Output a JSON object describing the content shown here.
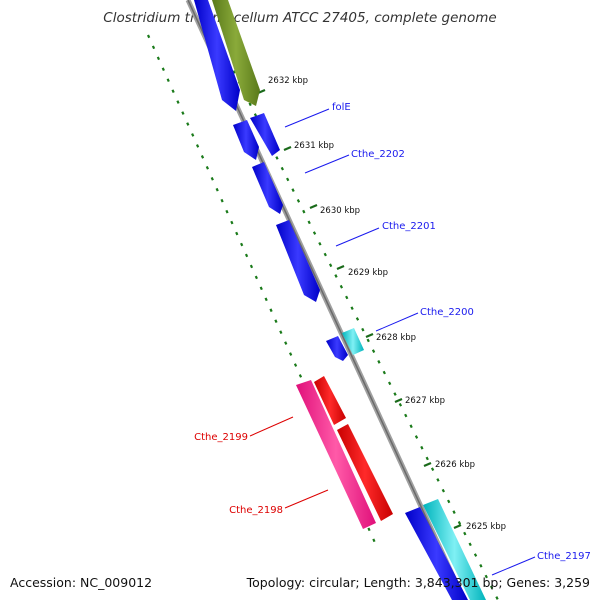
{
  "title": "Clostridium thermocellum ATCC 27405, complete genome",
  "footer": {
    "accession": "Accession: NC_009012",
    "summary": "Topology: circular; Length: 3,843,301 bp; Genes: 3,259"
  },
  "ruler": {
    "ticks": [
      {
        "label": "2632 kbp"
      },
      {
        "label": "2631 kbp"
      },
      {
        "label": "2630 kbp"
      },
      {
        "label": "2629 kbp"
      },
      {
        "label": "2628 kbp"
      },
      {
        "label": "2627 kbp"
      },
      {
        "label": "2626 kbp"
      },
      {
        "label": "2625 kbp"
      }
    ]
  },
  "genes": [
    {
      "id": "folE",
      "label": "folE",
      "color": "#1a1aee"
    },
    {
      "id": "Cthe_2202",
      "label": "Cthe_2202",
      "color": "#1a1aee"
    },
    {
      "id": "Cthe_2201",
      "label": "Cthe_2201",
      "color": "#1a1aee"
    },
    {
      "id": "Cthe_2200",
      "label": "Cthe_2200",
      "color": "#1a1aee"
    },
    {
      "id": "Cthe_2199",
      "label": "Cthe_2199",
      "color": "#dd0000"
    },
    {
      "id": "Cthe_2198",
      "label": "Cthe_2198",
      "color": "#dd0000"
    },
    {
      "id": "Cthe_2197",
      "label": "Cthe_2197",
      "color": "#1a1aee"
    }
  ],
  "colors": {
    "cds_blue": "#1010ee",
    "cds_red": "#ff0000",
    "cds_pink": "#ff1493",
    "cds_cyan": "#00c8d0",
    "cds_olive": "#6b8e23",
    "backbone": "#808080",
    "dots": "#1a7a1a"
  }
}
